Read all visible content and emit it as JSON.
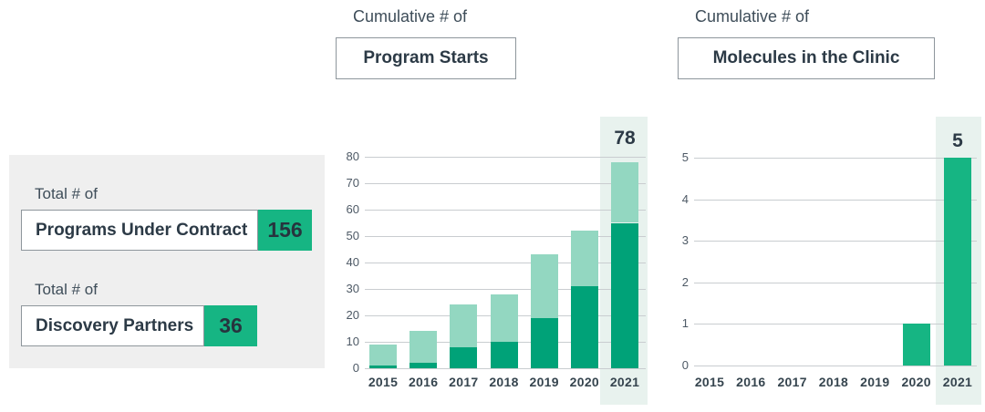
{
  "colors": {
    "green_bright": "#16b583",
    "green_dark": "#00a278",
    "green_light": "#93d7c1",
    "highlight_band": "#e8f2ee",
    "panel_bg": "#efefef",
    "text_dark": "#2c3a46",
    "grid_line": "#c9cdd0",
    "box_border": "#8e969c"
  },
  "summary_panel": {
    "items": [
      {
        "label": "Total # of",
        "name": "Programs Under Contract",
        "value": "156"
      },
      {
        "label": "Total # of",
        "name": "Discovery Partners",
        "value": "36"
      }
    ]
  },
  "chart_data": [
    {
      "type": "bar",
      "stacked": true,
      "title_prefix": "Cumulative # of",
      "title": "Program Starts",
      "categories": [
        "2015",
        "2016",
        "2017",
        "2018",
        "2019",
        "2020",
        "2021"
      ],
      "series": [
        {
          "name": "lower-segment",
          "color": "#00a278",
          "values": [
            1,
            2,
            8,
            10,
            19,
            31,
            55
          ]
        },
        {
          "name": "upper-segment",
          "color": "#93d7c1",
          "values": [
            8,
            12,
            16,
            18,
            24,
            21,
            23
          ]
        }
      ],
      "totals": [
        9,
        14,
        24,
        28,
        43,
        52,
        78
      ],
      "xlabel": "",
      "ylabel": "",
      "ylim": [
        0,
        80
      ],
      "yticks": [
        0,
        10,
        20,
        30,
        40,
        50,
        60,
        70,
        80
      ],
      "grid": true,
      "legend_position": "none",
      "highlight_category": "2021",
      "highlight_total_label": "78"
    },
    {
      "type": "bar",
      "stacked": false,
      "title_prefix": "Cumulative # of",
      "title": "Molecules in the Clinic",
      "categories": [
        "2015",
        "2016",
        "2017",
        "2018",
        "2019",
        "2020",
        "2021"
      ],
      "series": [
        {
          "name": "molecules",
          "color": "#16b583",
          "values": [
            0,
            0,
            0,
            0,
            0,
            1,
            5
          ]
        }
      ],
      "totals": [
        0,
        0,
        0,
        0,
        0,
        1,
        5
      ],
      "xlabel": "",
      "ylabel": "",
      "ylim": [
        0,
        5
      ],
      "yticks": [
        0,
        1,
        2,
        3,
        4,
        5
      ],
      "grid": true,
      "legend_position": "none",
      "highlight_category": "2021",
      "highlight_total_label": "5"
    }
  ]
}
